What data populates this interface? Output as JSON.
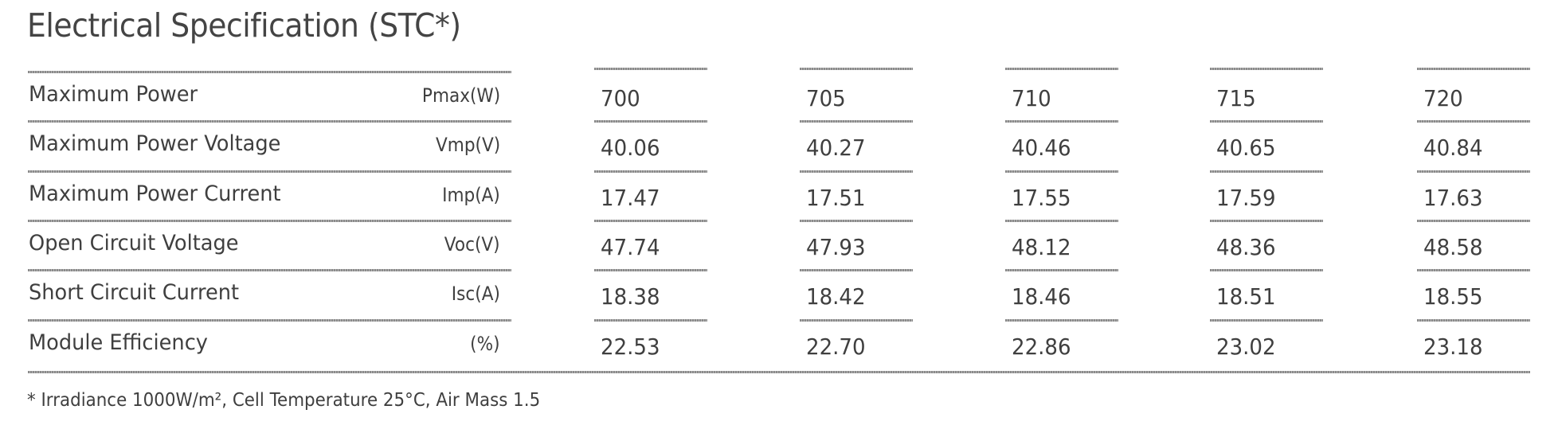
{
  "title": "Electrical Specification (STC*)",
  "columns": [
    "700",
    "705",
    "710",
    "715",
    "720"
  ],
  "rows": [
    {
      "label": "Maximum Power",
      "unit": "Pmax(W)",
      "values": [
        "700",
        "705",
        "710",
        "715",
        "720"
      ]
    },
    {
      "label": "Maximum Power Voltage",
      "unit": "Vmp(V)",
      "values": [
        "40.06",
        "40.27",
        "40.46",
        "40.65",
        "40.84"
      ]
    },
    {
      "label": "Maximum Power Current",
      "unit": "Imp(A)",
      "values": [
        "17.47",
        "17.51",
        "17.55",
        "17.59",
        "17.63"
      ]
    },
    {
      "label": "Open Circuit Voltage",
      "unit": "Voc(V)",
      "values": [
        "47.74",
        "47.93",
        "48.12",
        "48.36",
        "48.58"
      ]
    },
    {
      "label": "Short Circuit Current",
      "unit": "Isc(A)",
      "values": [
        "18.38",
        "18.42",
        "18.46",
        "18.51",
        "18.55"
      ]
    },
    {
      "label": "Module Efficiency",
      "unit": "(%)",
      "values": [
        "22.53",
        "22.70",
        "22.86",
        "23.02",
        "23.18"
      ]
    }
  ],
  "footnote": "* Irradiance 1000W/m², Cell Temperature 25°C, Air Mass 1.5"
}
